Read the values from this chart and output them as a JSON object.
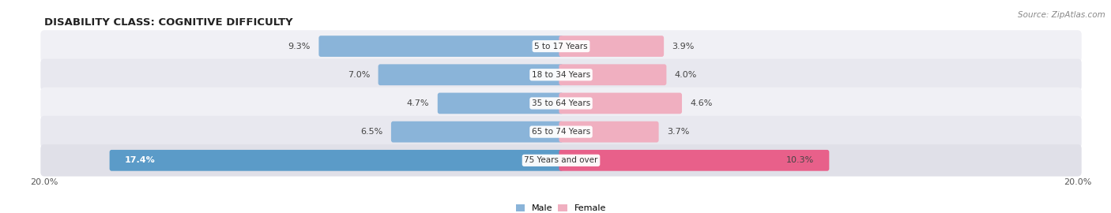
{
  "title": "DISABILITY CLASS: COGNITIVE DIFFICULTY",
  "source": "Source: ZipAtlas.com",
  "categories": [
    "5 to 17 Years",
    "18 to 34 Years",
    "35 to 64 Years",
    "65 to 74 Years",
    "75 Years and over"
  ],
  "male_values": [
    9.3,
    7.0,
    4.7,
    6.5,
    17.4
  ],
  "female_values": [
    3.9,
    4.0,
    4.6,
    3.7,
    10.3
  ],
  "male_colors": [
    "#8ab4d9",
    "#8ab4d9",
    "#8ab4d9",
    "#8ab4d9",
    "#5b9bc8"
  ],
  "female_colors": [
    "#f0afc0",
    "#f0afc0",
    "#f0afc0",
    "#f0afc0",
    "#e8608a"
  ],
  "max_val": 20.0,
  "row_colors": [
    "#f0f0f5",
    "#e8e8ef",
    "#f0f0f5",
    "#e8e8ef",
    "#e0e0e8"
  ],
  "label_color": "#333333",
  "title_fontsize": 9.5,
  "axis_label_fontsize": 8,
  "bar_label_fontsize": 8,
  "category_fontsize": 7.5
}
